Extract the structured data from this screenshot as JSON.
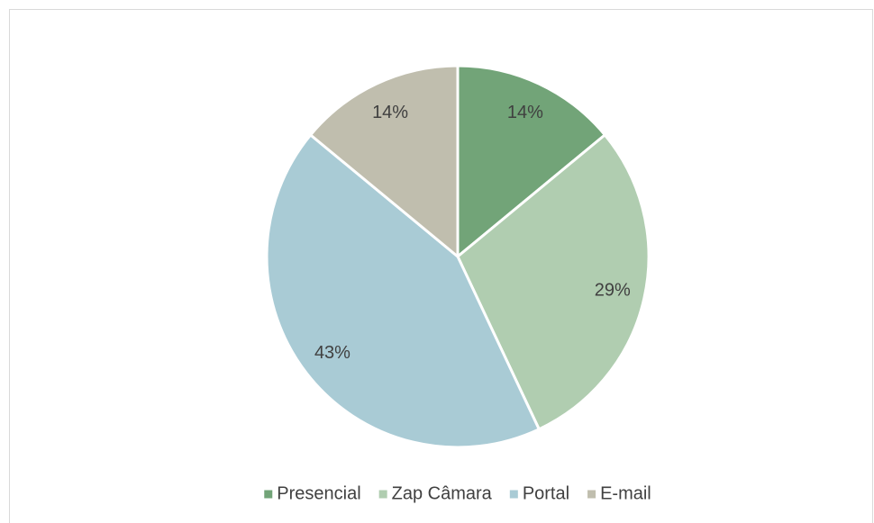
{
  "chart_data": {
    "type": "pie",
    "categories": [
      "Presencial",
      "Zap Câmara",
      "Portal",
      "E-mail"
    ],
    "values": [
      14,
      29,
      43,
      14
    ],
    "value_labels": [
      "14%",
      "29%",
      "43%",
      "14%"
    ],
    "colors": [
      "#72a478",
      "#b0cdb0",
      "#a9cbd5",
      "#c0beae"
    ],
    "legend": "bottom"
  }
}
